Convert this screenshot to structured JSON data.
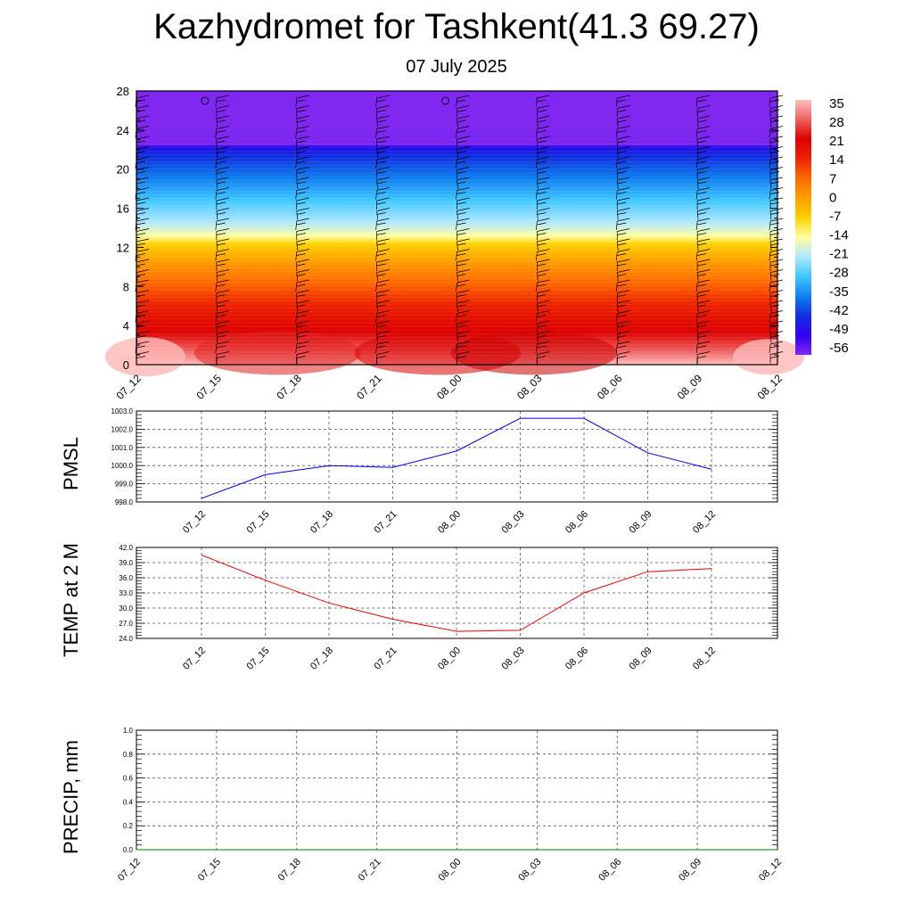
{
  "header": {
    "title": "Kazhydromet for Tashkent(41.3 69.27)",
    "subtitle": "07 July 2025"
  },
  "colors": {
    "pmsl_line": "#0000ee",
    "temp_line": "#ee0000",
    "precip_line": "#007f00"
  },
  "chart_data": [
    {
      "type": "heatmap",
      "title": "",
      "x": [
        "07_12",
        "07_15",
        "07_18",
        "07_21",
        "08_00",
        "08_03",
        "08_06",
        "08_09",
        "08_12"
      ],
      "yticks": [
        "0",
        "4",
        "8",
        "12",
        "16",
        "20",
        "24",
        "28"
      ],
      "ylim": [
        0,
        28
      ],
      "colorbar": {
        "labels": [
          "35",
          "28",
          "21",
          "14",
          "7",
          "0",
          "-7",
          "-14",
          "-21",
          "-28",
          "-35",
          "-42",
          "-49",
          "-56"
        ],
        "placement": "right"
      },
      "overlay": "wind barbs",
      "grid": false
    },
    {
      "type": "line",
      "ylabel": "PMSL",
      "x": [
        "07_12",
        "07_15",
        "07_18",
        "07_21",
        "08_00",
        "08_03",
        "08_06",
        "08_09",
        "08_12"
      ],
      "yticks": [
        "998.0",
        "999.0",
        "1000.0",
        "1001.0",
        "1002.0",
        "1003.0"
      ],
      "ylim": [
        998.0,
        1003.0
      ],
      "series": [
        {
          "values": [
            998.2,
            999.5,
            1000.0,
            999.9,
            1000.8,
            1002.6,
            1002.6,
            1000.7,
            999.8
          ]
        }
      ],
      "grid": true
    },
    {
      "type": "line",
      "ylabel": "TEMP at 2 M",
      "x": [
        "07_12",
        "07_15",
        "07_18",
        "07_21",
        "08_00",
        "08_03",
        "08_06",
        "08_09",
        "08_12"
      ],
      "yticks": [
        "24.0",
        "27.0",
        "30.0",
        "33.0",
        "36.0",
        "39.0",
        "42.0"
      ],
      "ylim": [
        24.0,
        42.0
      ],
      "series": [
        {
          "values": [
            40.5,
            35.5,
            31.0,
            27.8,
            25.4,
            25.6,
            33.0,
            37.2,
            37.8
          ]
        }
      ],
      "grid": true
    },
    {
      "type": "line",
      "ylabel": "PRECIP, mm",
      "x": [
        "07_12",
        "07_15",
        "07_18",
        "07_21",
        "08_00",
        "08_03",
        "08_06",
        "08_09",
        "08_12"
      ],
      "yticks": [
        "0.0",
        "0.2",
        "0.4",
        "0.6",
        "0.8",
        "1.0"
      ],
      "ylim": [
        0.0,
        1.0
      ],
      "series": [
        {
          "values": [
            0,
            0,
            0,
            0,
            0,
            0,
            0,
            0,
            0
          ]
        }
      ],
      "grid": true
    }
  ]
}
